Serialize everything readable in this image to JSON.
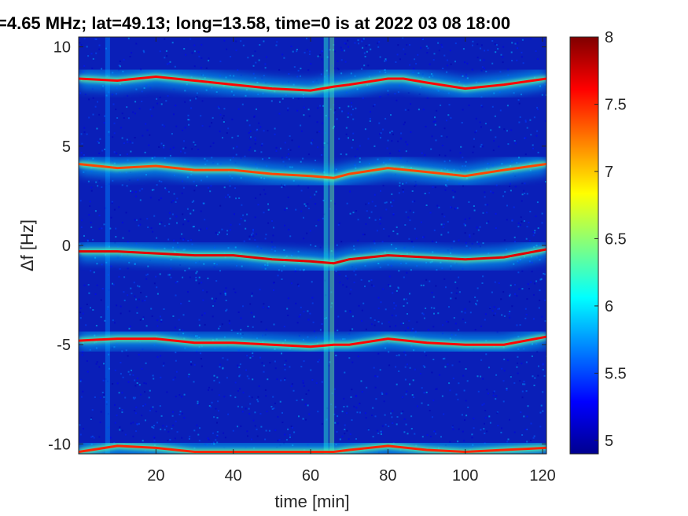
{
  "chart_data": {
    "type": "heatmap",
    "title": "=4.65 MHz;  lat=49.13; long=13.58, time=0 is at 2022 03 08 18:00",
    "xlabel": "time [min]",
    "ylabel": "Δf [Hz]",
    "xlim": [
      0,
      121
    ],
    "ylim": [
      -10.5,
      10.5
    ],
    "x_ticks": [
      20,
      40,
      60,
      80,
      100,
      120
    ],
    "x_tick_labels": [
      "20",
      "40",
      "60",
      "80",
      "100",
      "120"
    ],
    "y_ticks": [
      10,
      5,
      0,
      -5,
      -10
    ],
    "y_tick_labels": [
      "10",
      "5",
      "0",
      "-5",
      "-10"
    ],
    "colorbar": {
      "colormap": "jet",
      "limits": [
        4.9,
        8
      ],
      "ticks": [
        5,
        5.5,
        6,
        6.5,
        7,
        7.5,
        8
      ],
      "tick_labels": [
        "5",
        "5.5",
        "6",
        "6.5",
        "7",
        "7.5",
        "8"
      ]
    },
    "background_level": 5.0,
    "vertical_bright_columns": [
      {
        "x": 7.5,
        "level": 5.7
      },
      {
        "x": 64,
        "level": 6.2
      },
      {
        "x": 65.5,
        "level": 6.4
      }
    ],
    "series": [
      {
        "x": [
          0,
          10,
          20,
          30,
          40,
          50,
          60,
          66,
          70,
          80,
          84,
          90,
          100,
          110,
          121
        ],
        "y": [
          8.4,
          8.3,
          8.5,
          8.3,
          8.1,
          7.9,
          7.8,
          8.0,
          8.1,
          8.4,
          8.4,
          8.2,
          7.9,
          8.1,
          8.4
        ],
        "level": 7.6
      },
      {
        "x": [
          0,
          10,
          20,
          30,
          40,
          50,
          60,
          66,
          70,
          80,
          90,
          100,
          110,
          121
        ],
        "y": [
          4.1,
          3.9,
          4.0,
          3.8,
          3.8,
          3.6,
          3.5,
          3.4,
          3.6,
          3.9,
          3.7,
          3.5,
          3.8,
          4.1
        ],
        "level": 7.4
      },
      {
        "x": [
          0,
          10,
          20,
          30,
          40,
          50,
          60,
          66,
          70,
          80,
          90,
          100,
          110,
          121
        ],
        "y": [
          -0.3,
          -0.3,
          -0.4,
          -0.5,
          -0.5,
          -0.7,
          -0.8,
          -0.9,
          -0.7,
          -0.5,
          -0.6,
          -0.7,
          -0.6,
          -0.2
        ],
        "level": 7.7
      },
      {
        "x": [
          0,
          10,
          20,
          30,
          40,
          50,
          60,
          66,
          70,
          80,
          90,
          100,
          110,
          121
        ],
        "y": [
          -4.8,
          -4.7,
          -4.7,
          -4.9,
          -4.9,
          -5.0,
          -5.1,
          -5.0,
          -5.0,
          -4.7,
          -4.9,
          -5.0,
          -5.0,
          -4.6
        ],
        "level": 7.6
      },
      {
        "x": [
          0,
          10,
          20,
          30,
          40,
          50,
          60,
          66,
          70,
          80,
          90,
          100,
          110,
          121
        ],
        "y": [
          -10.4,
          -10.1,
          -10.2,
          -10.4,
          -10.4,
          -10.4,
          -10.4,
          -10.4,
          -10.3,
          -10.1,
          -10.3,
          -10.4,
          -10.3,
          -10.2
        ],
        "level": 7.5
      }
    ]
  }
}
